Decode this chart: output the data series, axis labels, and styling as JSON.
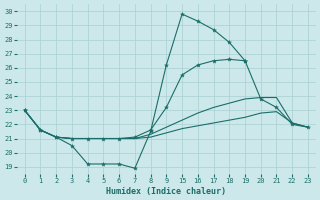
{
  "xlabel": "Humidex (Indice chaleur)",
  "bg_color": "#cde8ea",
  "grid_color": "#a8d0d3",
  "line_color": "#1a6e6a",
  "ylim": [
    18.5,
    30.5
  ],
  "yticks": [
    19,
    20,
    21,
    22,
    23,
    24,
    25,
    26,
    27,
    28,
    29,
    30
  ],
  "xtick_labels": [
    "0",
    "1",
    "2",
    "3",
    "4",
    "5",
    "6",
    "7",
    "8",
    "9",
    "15",
    "16",
    "17",
    "18",
    "19",
    "20",
    "21",
    "22",
    "23"
  ],
  "series": [
    {
      "x": [
        0,
        1,
        2,
        3,
        4,
        5,
        6,
        7,
        8,
        9,
        10,
        11,
        12,
        13,
        14
      ],
      "y": [
        23.0,
        21.6,
        21.1,
        20.5,
        19.2,
        19.2,
        19.2,
        18.9,
        21.5,
        26.2,
        29.8,
        29.3,
        28.7,
        27.8,
        26.5
      ],
      "marker": true
    },
    {
      "x": [
        0,
        1,
        2,
        3,
        4,
        5,
        6,
        7,
        8,
        9,
        10,
        11,
        12,
        13,
        14,
        15,
        16,
        17,
        18
      ],
      "y": [
        23.0,
        21.6,
        21.1,
        21.0,
        21.0,
        21.0,
        21.0,
        21.1,
        21.6,
        23.2,
        25.5,
        26.2,
        26.5,
        26.6,
        26.5,
        23.8,
        23.2,
        22.0,
        21.8
      ],
      "marker": true
    },
    {
      "x": [
        0,
        1,
        2,
        3,
        4,
        5,
        6,
        7,
        8,
        9,
        10,
        11,
        12,
        13,
        14,
        15,
        16,
        17,
        18
      ],
      "y": [
        23.0,
        21.6,
        21.1,
        21.0,
        21.0,
        21.0,
        21.0,
        21.0,
        21.3,
        21.8,
        22.3,
        22.8,
        23.2,
        23.5,
        23.8,
        23.9,
        23.9,
        22.1,
        21.8
      ],
      "marker": false
    },
    {
      "x": [
        0,
        1,
        2,
        3,
        4,
        5,
        6,
        7,
        8,
        9,
        10,
        11,
        12,
        13,
        14,
        15,
        16,
        17,
        18
      ],
      "y": [
        23.0,
        21.6,
        21.1,
        21.0,
        21.0,
        21.0,
        21.0,
        21.0,
        21.1,
        21.4,
        21.7,
        21.9,
        22.1,
        22.3,
        22.5,
        22.8,
        22.9,
        22.1,
        21.8
      ],
      "marker": false
    }
  ]
}
